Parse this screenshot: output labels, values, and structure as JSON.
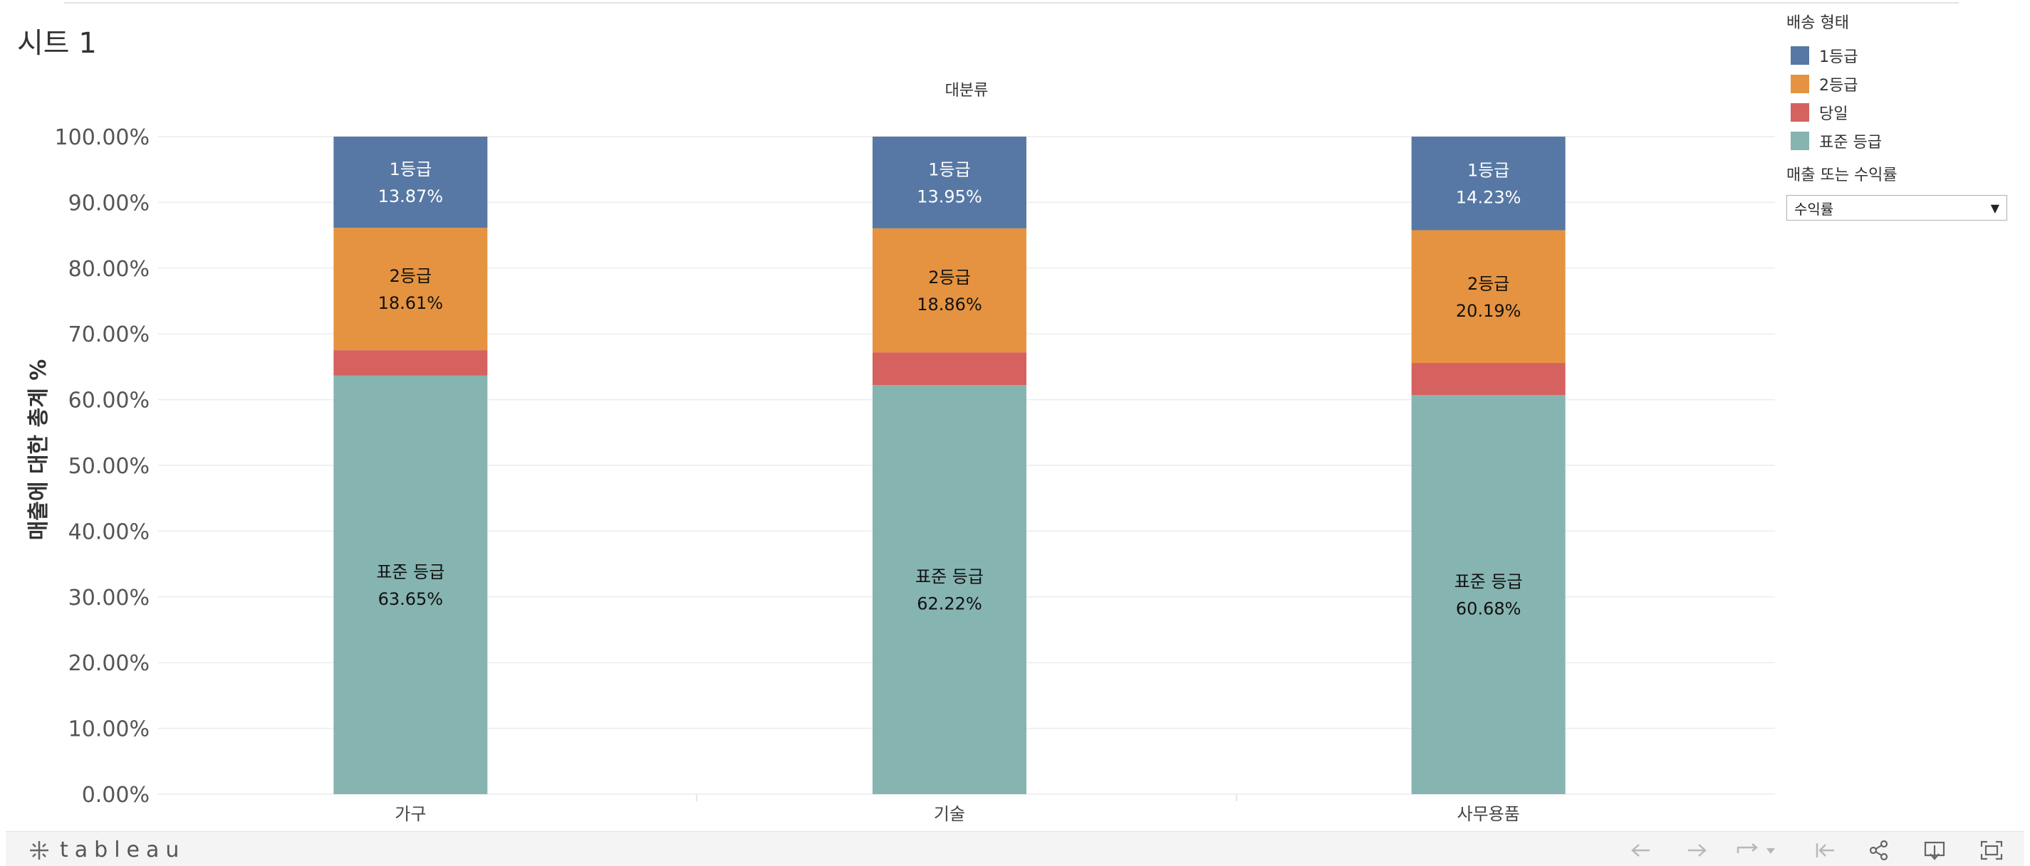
{
  "sheet": {
    "title": "시트 1"
  },
  "chart_data": {
    "type": "bar",
    "stacked": true,
    "title": "대분류",
    "ylabel": "매출에 대한 총계 %",
    "ylim": [
      0,
      100
    ],
    "yticks": [
      "0.00%",
      "10.00%",
      "20.00%",
      "30.00%",
      "40.00%",
      "50.00%",
      "60.00%",
      "70.00%",
      "80.00%",
      "90.00%",
      "100.00%"
    ],
    "categories": [
      "가구",
      "기술",
      "사무용품"
    ],
    "series": [
      {
        "name": "표준 등급",
        "color": "#86b4b1",
        "values": [
          63.65,
          62.22,
          60.68
        ],
        "labels": [
          "63.65%",
          "62.22%",
          "60.68%"
        ]
      },
      {
        "name": "당일",
        "color": "#d5625e",
        "values": [
          3.87,
          4.97,
          4.9
        ],
        "labels": [
          "",
          "",
          ""
        ]
      },
      {
        "name": "2등급",
        "color": "#e59340",
        "values": [
          18.61,
          18.86,
          20.19
        ],
        "labels": [
          "18.61%",
          "18.86%",
          "20.19%"
        ]
      },
      {
        "name": "1등급",
        "color": "#5778a4",
        "values": [
          13.87,
          13.95,
          14.23
        ],
        "labels": [
          "13.87%",
          "13.95%",
          "14.23%"
        ]
      }
    ],
    "grid": true
  },
  "legend": {
    "title": "배송 형태",
    "items": [
      {
        "label": "1등급",
        "color": "#5778a4"
      },
      {
        "label": "2등급",
        "color": "#e59340"
      },
      {
        "label": "당일",
        "color": "#d5625e"
      },
      {
        "label": "표준 등급",
        "color": "#86b4b1"
      }
    ]
  },
  "parameter": {
    "title": "매출 또는 수익률",
    "value": "수익률"
  },
  "footer": {
    "brand": "tableau"
  }
}
